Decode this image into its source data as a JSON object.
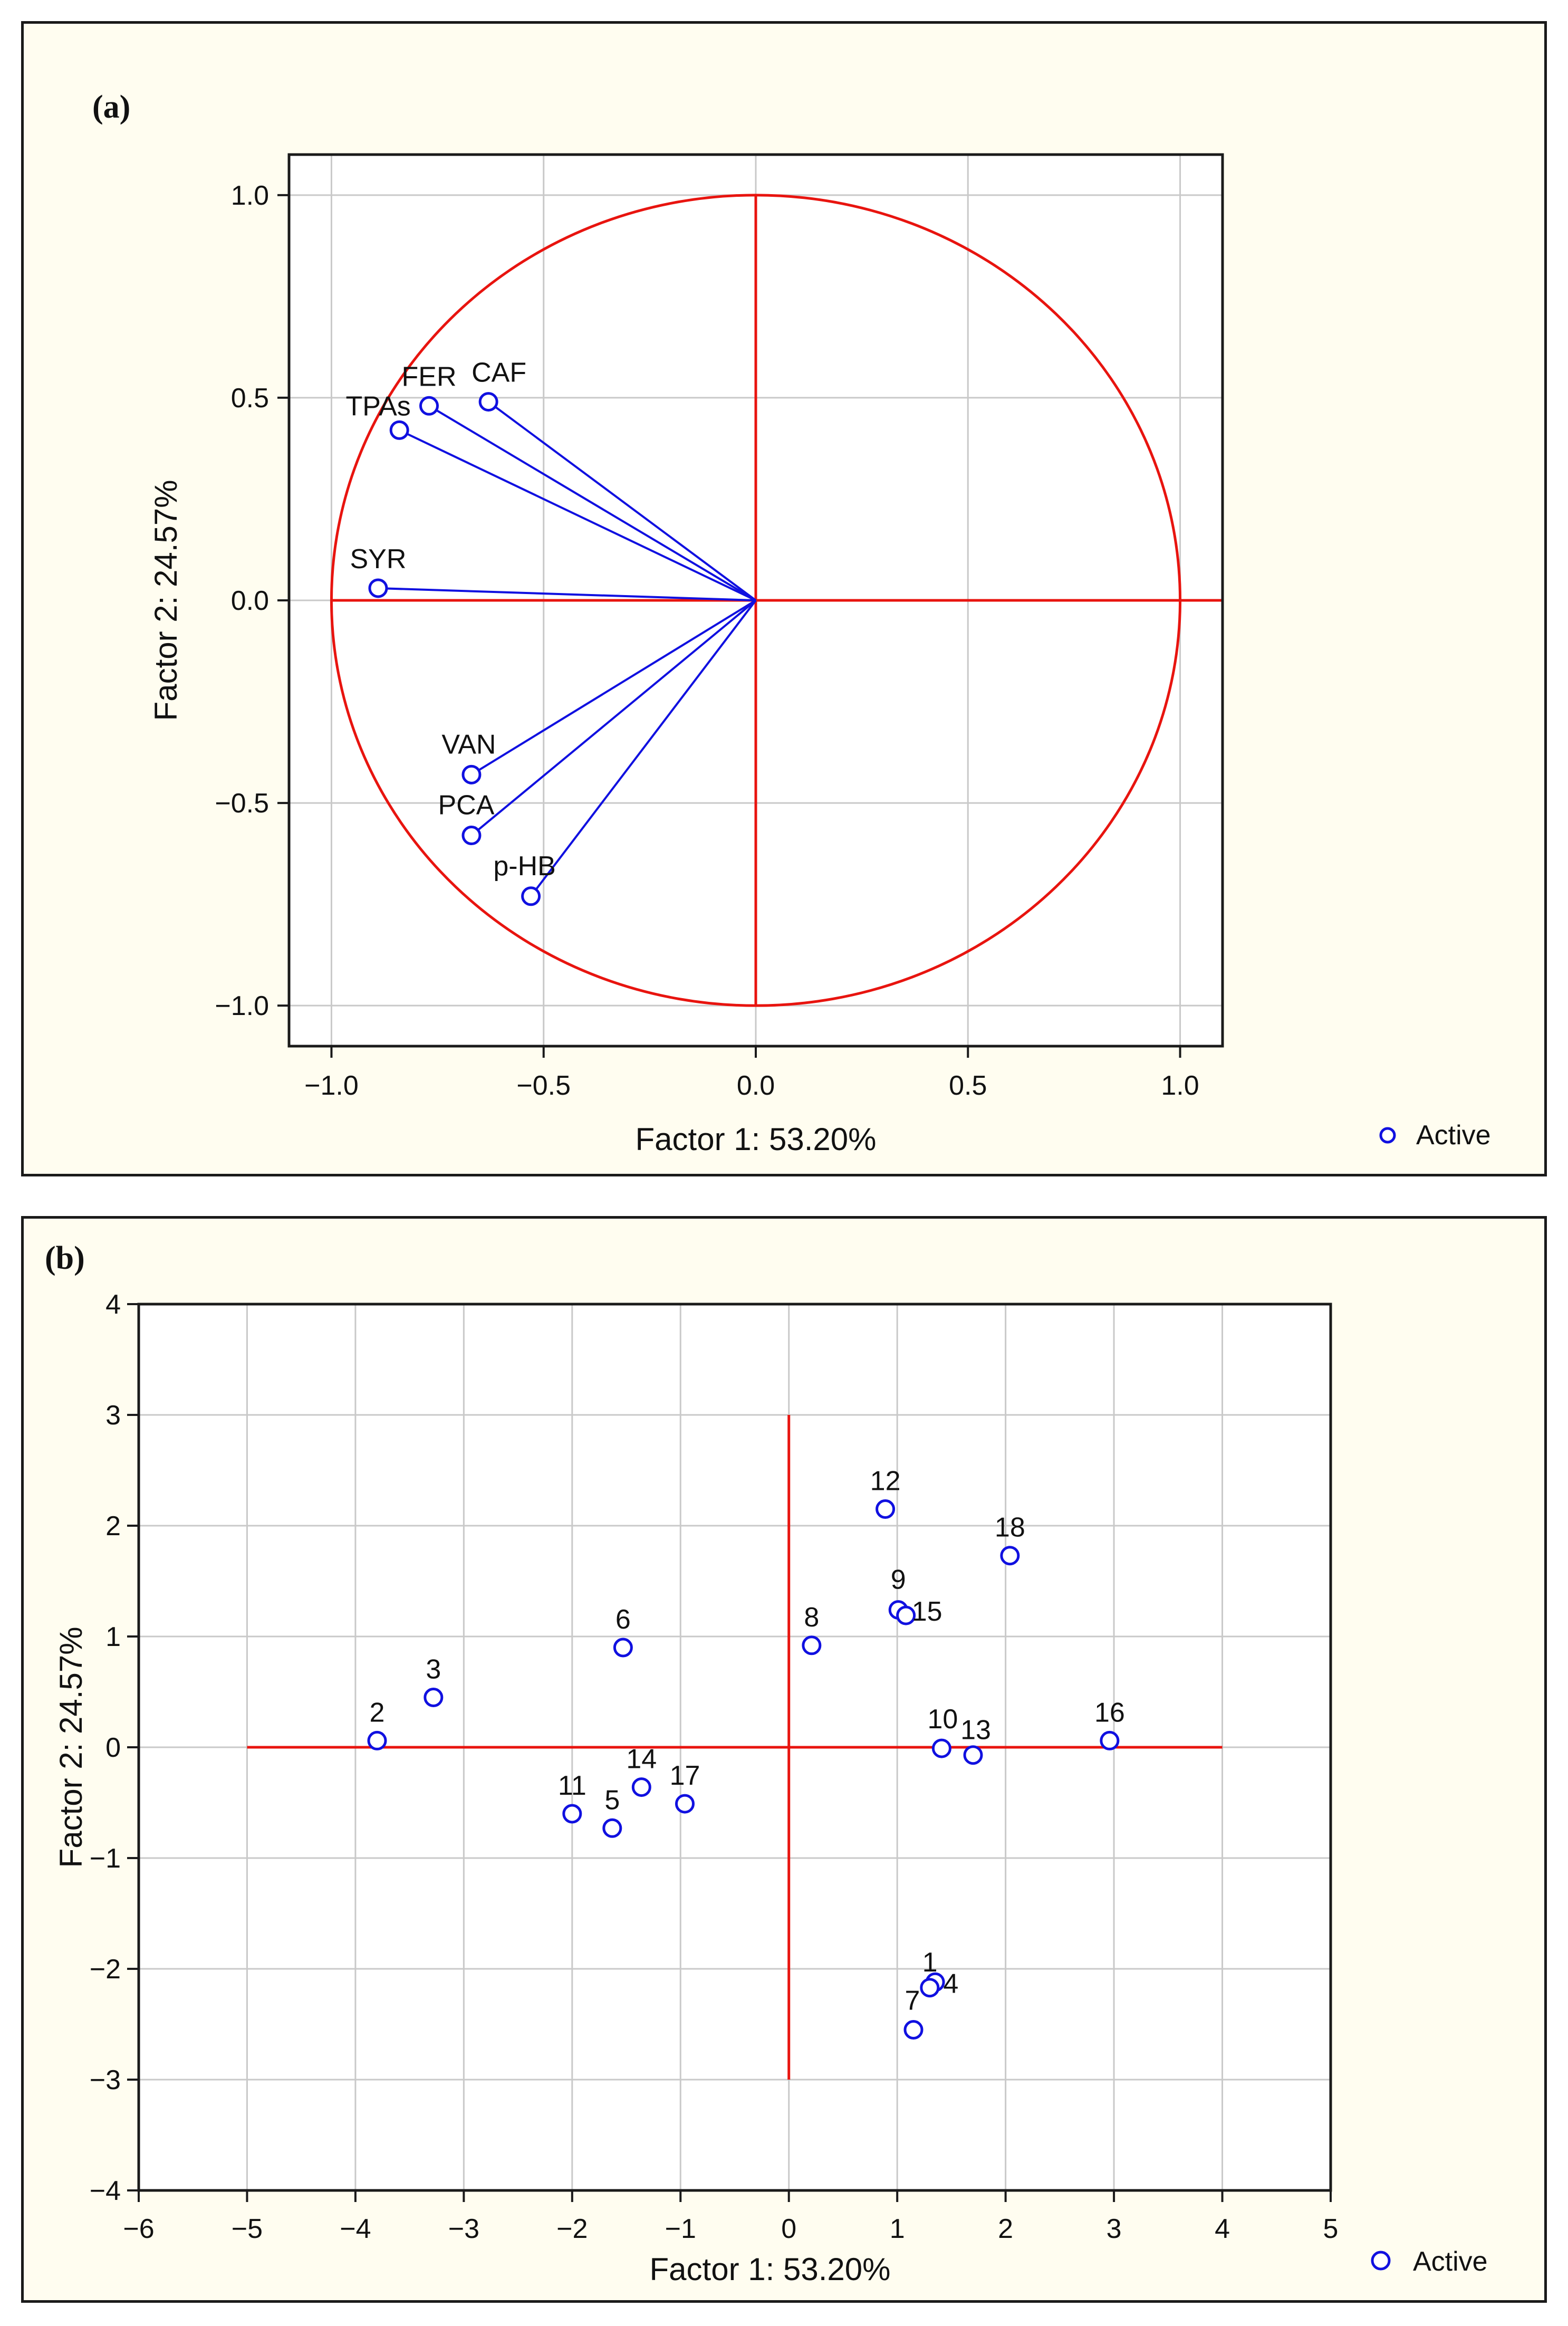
{
  "chart_data": [
    {
      "type": "scatter",
      "subtype": "loading-plot",
      "panel_label": "(a)",
      "xlabel": "Factor 1: 53.20%",
      "ylabel": "Factor 2: 24.57%",
      "xlim": [
        -1.1,
        1.1
      ],
      "ylim": [
        -1.1,
        1.1
      ],
      "xticks": [
        -1.0,
        -0.5,
        0.0,
        0.5,
        1.0
      ],
      "yticks": [
        -1.0,
        -0.5,
        0.0,
        0.5,
        1.0
      ],
      "xtick_labels": [
        "−1.0",
        "−0.5",
        "0.0",
        "0.5",
        "1.0"
      ],
      "ytick_labels": [
        "−1.0",
        "−0.5",
        "0.0",
        "0.5",
        "1.0"
      ],
      "grid": true,
      "unit_circle": true,
      "legend": {
        "label": "Active",
        "position": "below-right"
      },
      "points": [
        {
          "label": "FER",
          "x": -0.77,
          "y": 0.48
        },
        {
          "label": "CAF",
          "x": -0.63,
          "y": 0.49
        },
        {
          "label": "TPAs",
          "x": -0.84,
          "y": 0.42
        },
        {
          "label": "SYR",
          "x": -0.89,
          "y": 0.03
        },
        {
          "label": "VAN",
          "x": -0.67,
          "y": -0.43
        },
        {
          "label": "PCA",
          "x": -0.67,
          "y": -0.58
        },
        {
          "label": "p-HB",
          "x": -0.53,
          "y": -0.73
        }
      ]
    },
    {
      "type": "scatter",
      "subtype": "score-plot",
      "panel_label": "(b)",
      "xlabel": "Factor 1: 53.20%",
      "ylabel": "Factor 2: 24.57%",
      "xlim": [
        -6,
        5
      ],
      "ylim": [
        -4,
        4
      ],
      "xticks": [
        -6,
        -5,
        -4,
        -3,
        -2,
        -1,
        0,
        1,
        2,
        3,
        4,
        5
      ],
      "yticks": [
        -4,
        -3,
        -2,
        -1,
        0,
        1,
        2,
        3,
        4
      ],
      "xtick_labels": [
        "−6",
        "−5",
        "−4",
        "−3",
        "−2",
        "−1",
        "0",
        "1",
        "2",
        "3",
        "4",
        "5"
      ],
      "ytick_labels": [
        "−4",
        "−3",
        "−2",
        "−1",
        "0",
        "1",
        "2",
        "3",
        "4"
      ],
      "grid": true,
      "reference_lines": {
        "horizontal": {
          "y": 0,
          "x_from": -5,
          "x_to": 4
        },
        "vertical": {
          "x": 0,
          "y_from": -3,
          "y_to": 3
        }
      },
      "legend": {
        "label": "Active",
        "position": "below-right"
      },
      "points": [
        {
          "label": "1",
          "x": 1.35,
          "y": -2.12
        },
        {
          "label": "2",
          "x": -3.8,
          "y": 0.06
        },
        {
          "label": "3",
          "x": -3.28,
          "y": 0.45
        },
        {
          "label": "4",
          "x": 1.3,
          "y": -2.17
        },
        {
          "label": "5",
          "x": -1.63,
          "y": -0.73
        },
        {
          "label": "6",
          "x": -1.53,
          "y": 0.9
        },
        {
          "label": "7",
          "x": 1.15,
          "y": -2.55
        },
        {
          "label": "8",
          "x": 0.21,
          "y": 0.92
        },
        {
          "label": "9",
          "x": 1.01,
          "y": 1.24
        },
        {
          "label": "10",
          "x": 1.41,
          "y": -0.01
        },
        {
          "label": "11",
          "x": -2.0,
          "y": -0.6
        },
        {
          "label": "12",
          "x": 0.89,
          "y": 2.15
        },
        {
          "label": "13",
          "x": 1.7,
          "y": -0.07
        },
        {
          "label": "14",
          "x": -1.36,
          "y": -0.36
        },
        {
          "label": "15",
          "x": 1.08,
          "y": 1.19
        },
        {
          "label": "16",
          "x": 2.96,
          "y": 0.06
        },
        {
          "label": "17",
          "x": -0.96,
          "y": -0.51
        },
        {
          "label": "18",
          "x": 2.04,
          "y": 1.73
        }
      ]
    }
  ],
  "colors": {
    "marker": "#1010e0",
    "reference": "#e8140f",
    "grid": "#c9c9c9",
    "frame": "#1a1a1a",
    "panel_bg": "#fffdf0",
    "plot_bg": "#ffffff"
  }
}
